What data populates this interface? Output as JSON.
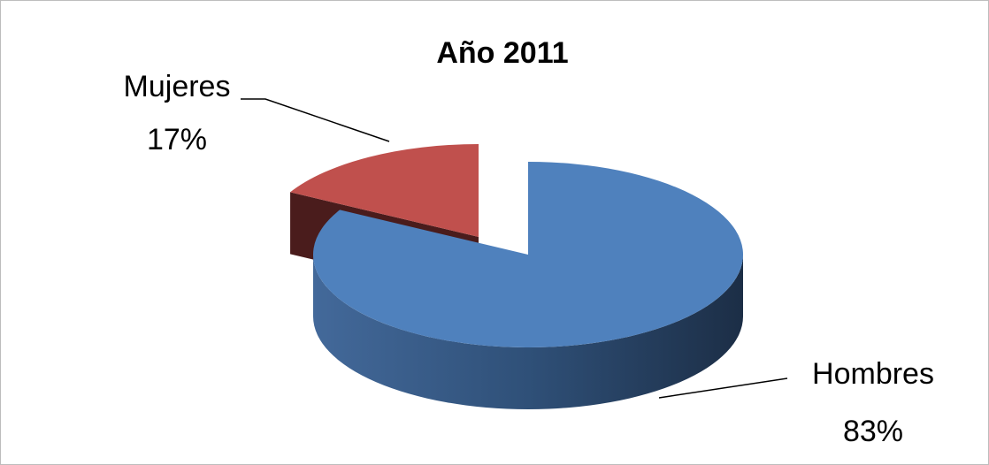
{
  "chart_data": {
    "type": "pie",
    "title": "Año 2011",
    "categories": [
      "Hombres",
      "Mujeres"
    ],
    "values": [
      83,
      17
    ],
    "value_labels": [
      "83%",
      "17%"
    ],
    "colors": [
      "#4f81bd",
      "#c0504d"
    ]
  }
}
